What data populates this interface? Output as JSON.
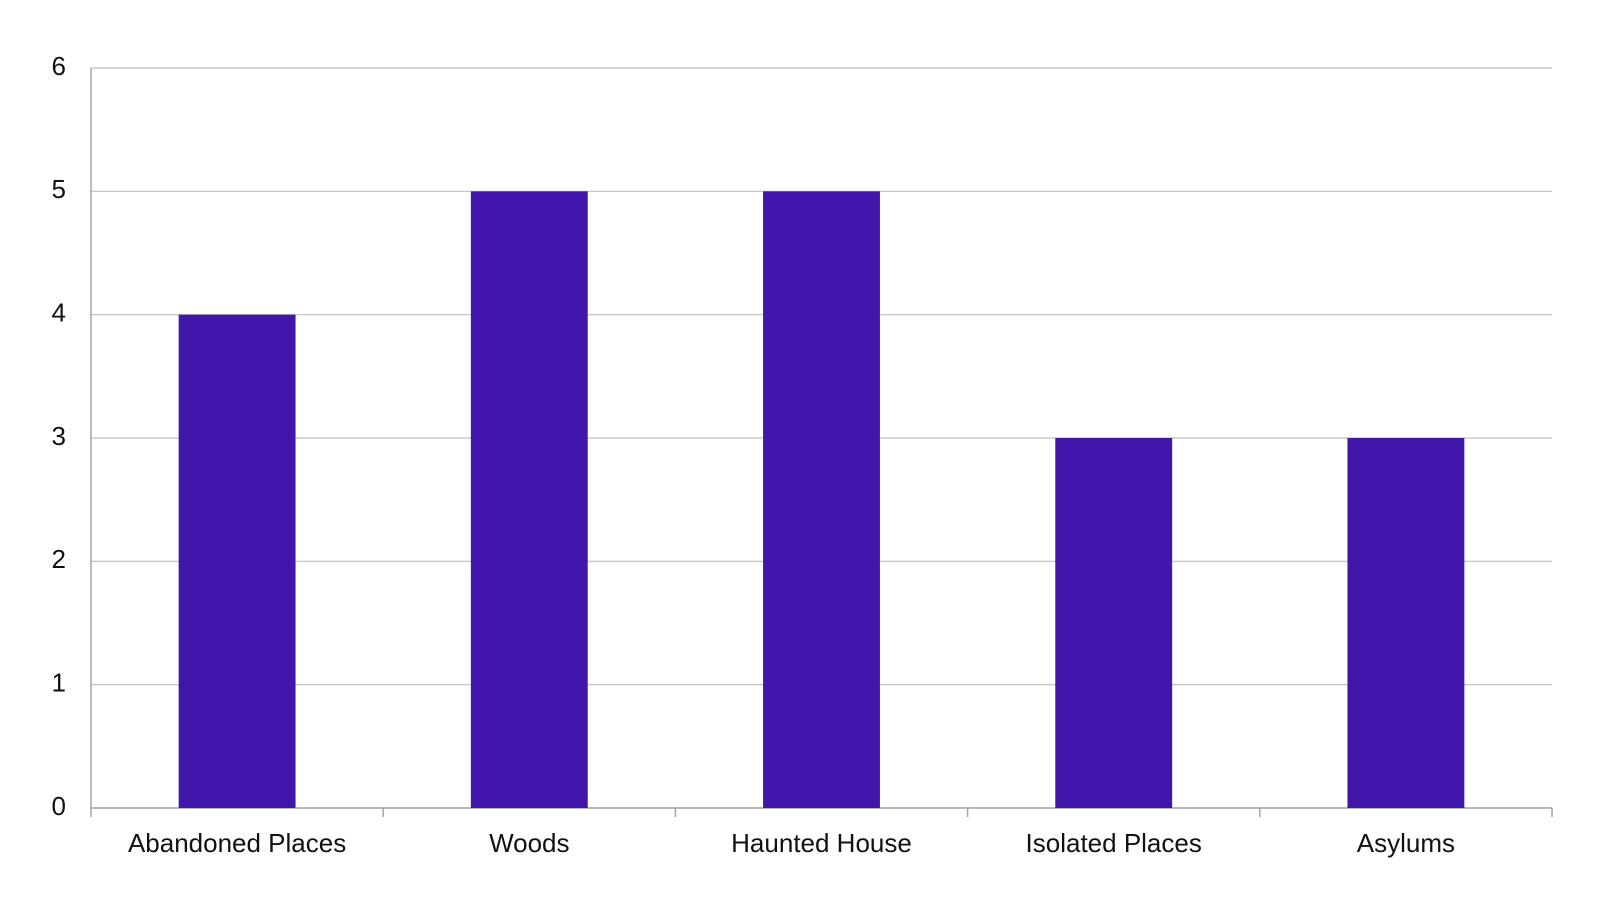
{
  "chart_data": {
    "type": "bar",
    "categories": [
      "Abandoned Places",
      "Woods",
      "Haunted House",
      "Isolated Places",
      "Asylums"
    ],
    "values": [
      4,
      5,
      5,
      3,
      3
    ],
    "color": "#4316ab",
    "ylim": [
      0,
      6
    ],
    "yticks": [
      0,
      1,
      2,
      3,
      4,
      5,
      6
    ],
    "grid": true
  }
}
